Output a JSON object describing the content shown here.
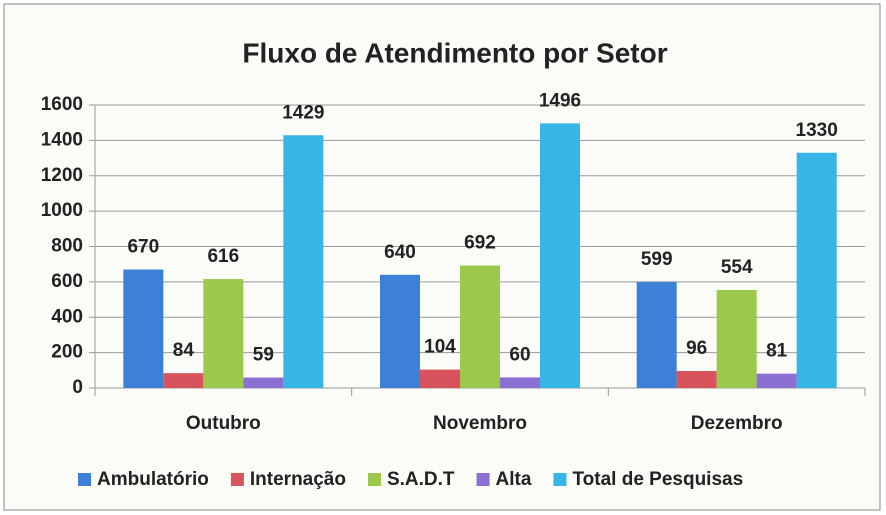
{
  "chart_data": {
    "type": "bar",
    "title": "Fluxo de Atendimento por Setor",
    "categories": [
      "Outubro",
      "Novembro",
      "Dezembro"
    ],
    "series": [
      {
        "name": "Ambulatório",
        "color": "#3d80d8",
        "values": [
          670,
          640,
          599
        ]
      },
      {
        "name": "Internação",
        "color": "#d9535c",
        "values": [
          84,
          104,
          96
        ]
      },
      {
        "name": "S.A.D.T",
        "color": "#9cc84b",
        "values": [
          616,
          692,
          554
        ]
      },
      {
        "name": "Alta",
        "color": "#8b6fd2",
        "values": [
          59,
          60,
          81
        ]
      },
      {
        "name": "Total de Pesquisas",
        "color": "#35b6e6",
        "values": [
          1429,
          1496,
          1330
        ]
      }
    ],
    "ylim": [
      0,
      1600
    ],
    "yticks": [
      0,
      200,
      400,
      600,
      800,
      1000,
      1200,
      1400,
      1600
    ],
    "grid": true,
    "legend": "bottom"
  }
}
